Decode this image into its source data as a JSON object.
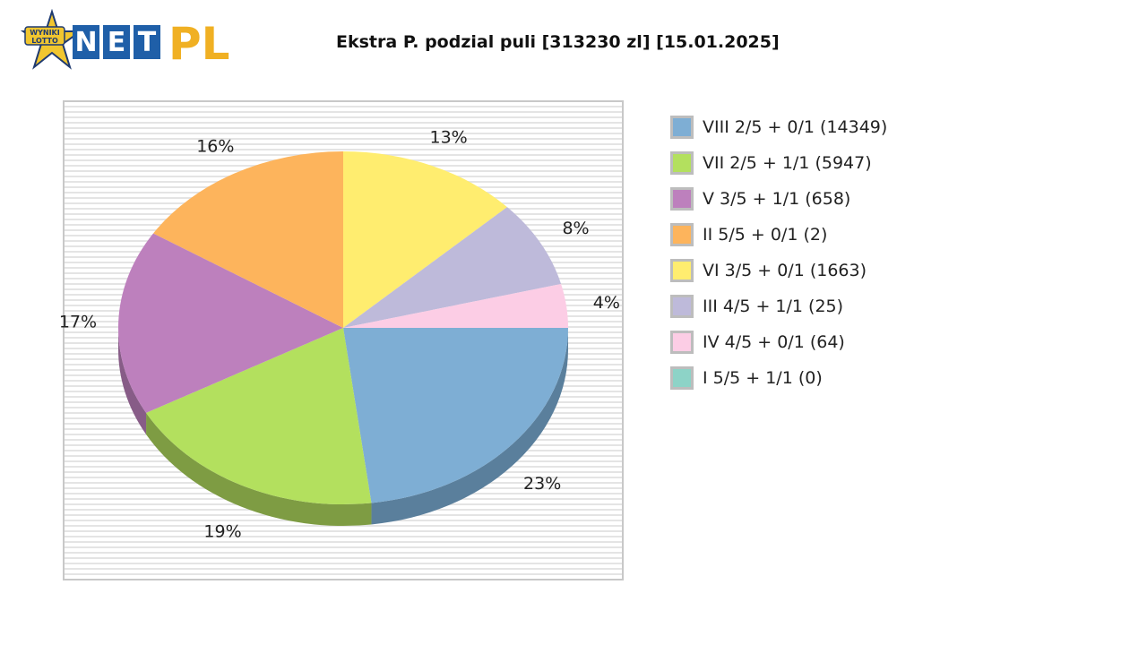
{
  "logo": {
    "badge_line1": "WYNIKI",
    "badge_line2": "LOTTO",
    "letters": [
      "N",
      "E",
      "T"
    ],
    "suffix": "PL",
    "colors": {
      "badge": "#f1c62f",
      "tile": "#1f5fa8",
      "suffix": "#f0b023"
    }
  },
  "chart_data": {
    "type": "pie",
    "title": "Ekstra P. podzial puli [313230 zl] [15.01.2025]",
    "slices": [
      {
        "label": "VIII 2/5 + 0/1 (14349)",
        "percent": 23,
        "percent_label": "23%",
        "color": "#7eaed4",
        "side": "#5a7f9c"
      },
      {
        "label": "VII 2/5 + 1/1 (5947)",
        "percent": 19,
        "percent_label": "19%",
        "color": "#b3e05e",
        "side": "#7e9c43"
      },
      {
        "label": "V 3/5 + 1/1 (658)",
        "percent": 17,
        "percent_label": "17%",
        "color": "#bd80bd",
        "side": "#875c87"
      },
      {
        "label": "II 5/5 + 0/1 (2)",
        "percent": 16,
        "percent_label": "16%",
        "color": "#fdb45c",
        "side": "#b27e41"
      },
      {
        "label": "VI 3/5 + 0/1 (1663)",
        "percent": 13,
        "percent_label": "13%",
        "color": "#ffed6f",
        "side": "#b3a64e"
      },
      {
        "label": "III 4/5 + 1/1 (25)",
        "percent": 8,
        "percent_label": "8%",
        "color": "#bebada",
        "side": "#868399"
      },
      {
        "label": "IV 4/5 + 0/1 (64)",
        "percent": 4,
        "percent_label": "4%",
        "color": "#fccde5",
        "side": "#b191a1"
      },
      {
        "label": "I 5/5 + 1/1 (0)",
        "percent": 0,
        "percent_label": "",
        "color": "#8dd3c7",
        "side": "#63948c"
      }
    ],
    "legend_position": "right",
    "style": "3d"
  }
}
